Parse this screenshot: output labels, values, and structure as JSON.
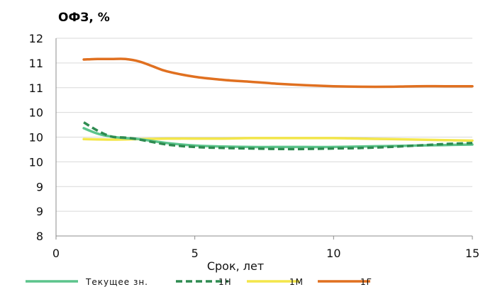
{
  "chart_data": {
    "type": "line",
    "title": "ОФЗ, %",
    "xlabel": "Срок, лет",
    "ylabel": "",
    "xlim": [
      0,
      15
    ],
    "ylim": [
      8,
      12
    ],
    "x_ticks": [
      0,
      5,
      10,
      15
    ],
    "y_ticks": [
      8,
      8.5,
      9,
      9.5,
      10,
      10.5,
      11,
      11.5,
      12
    ],
    "y_tick_labels": [
      "8",
      "9",
      "9",
      "10",
      "10",
      "10",
      "11",
      "11",
      "12"
    ],
    "grid": true,
    "legend": "bottom",
    "series": [
      {
        "name": "Текущее зн.",
        "color": "#5cc48c",
        "dash": "solid",
        "x": [
          1,
          1.5,
          2,
          2.5,
          3,
          4,
          5,
          6,
          7,
          8,
          9,
          10,
          11,
          12,
          13,
          14,
          15
        ],
        "values": [
          10.18,
          10.07,
          10.01,
          9.98,
          9.96,
          9.88,
          9.83,
          9.81,
          9.8,
          9.8,
          9.8,
          9.8,
          9.81,
          9.82,
          9.83,
          9.84,
          9.85
        ]
      },
      {
        "name": "1Н",
        "color": "#2e8b50",
        "dash": "dashed",
        "x": [
          1,
          1.5,
          2,
          2.5,
          3,
          4,
          5,
          6,
          7,
          8,
          9,
          10,
          11,
          12,
          13,
          14,
          15
        ],
        "values": [
          10.3,
          10.13,
          10.01,
          9.99,
          9.95,
          9.85,
          9.8,
          9.78,
          9.77,
          9.76,
          9.76,
          9.77,
          9.78,
          9.8,
          9.83,
          9.86,
          9.88
        ]
      },
      {
        "name": "1М",
        "color": "#f3e64a",
        "dash": "solid",
        "x": [
          1,
          2,
          3,
          4,
          5,
          6,
          7,
          8,
          9,
          10,
          11,
          12,
          13,
          14,
          15
        ],
        "values": [
          9.96,
          9.95,
          9.96,
          9.97,
          9.97,
          9.97,
          9.98,
          9.98,
          9.98,
          9.98,
          9.97,
          9.96,
          9.95,
          9.94,
          9.93
        ]
      },
      {
        "name": "1Г",
        "color": "#e07020",
        "dash": "solid",
        "x": [
          1,
          1.5,
          2,
          2.5,
          3,
          3.5,
          4,
          5,
          6,
          7,
          8,
          9,
          10,
          11,
          12,
          13,
          14,
          15
        ],
        "values": [
          11.57,
          11.58,
          11.58,
          11.58,
          11.53,
          11.43,
          11.33,
          11.22,
          11.16,
          11.12,
          11.08,
          11.05,
          11.03,
          11.02,
          11.02,
          11.03,
          11.03,
          11.03
        ]
      }
    ]
  }
}
